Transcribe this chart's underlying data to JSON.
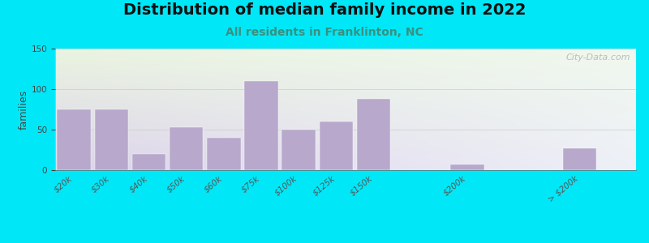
{
  "title": "Distribution of median family income in 2022",
  "subtitle": "All residents in Franklinton, NC",
  "ylabel": "families",
  "categories": [
    "$20k",
    "$30k",
    "$40k",
    "$50k",
    "$60k",
    "$75k",
    "$100k",
    "$125k",
    "$150k",
    "$200k",
    "> $200k"
  ],
  "values": [
    75,
    75,
    20,
    53,
    40,
    110,
    50,
    60,
    88,
    7,
    27
  ],
  "bar_color": "#b8a8cc",
  "background_outer": "#00e8f8",
  "title_fontsize": 14,
  "subtitle_fontsize": 10,
  "subtitle_color": "#3a9080",
  "ylabel_fontsize": 9,
  "tick_fontsize": 7.5,
  "ylim": [
    0,
    150
  ],
  "yticks": [
    0,
    50,
    100,
    150
  ],
  "watermark": "City-Data.com",
  "figsize": [
    8.0,
    3.0
  ],
  "dpi": 100,
  "x_positions": [
    0,
    1,
    2,
    3,
    4,
    5,
    6,
    7,
    8,
    10.5,
    13.5
  ],
  "xlim": [
    -0.5,
    15.0
  ],
  "bar_width": 0.9
}
